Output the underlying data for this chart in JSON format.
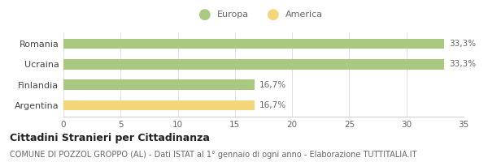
{
  "categories": [
    "Romania",
    "Ucraina",
    "Finlandia",
    "Argentina"
  ],
  "values": [
    33.3,
    33.3,
    16.7,
    16.7
  ],
  "bar_colors": [
    "#a8c97f",
    "#a8c97f",
    "#a8c97f",
    "#f5d57a"
  ],
  "bar_labels": [
    "33,3%",
    "33,3%",
    "16,7%",
    "16,7%"
  ],
  "legend_labels": [
    "Europa",
    "America"
  ],
  "legend_colors": [
    "#a8c97f",
    "#f5d57a"
  ],
  "xlim": [
    0,
    35
  ],
  "xticks": [
    0,
    5,
    10,
    15,
    20,
    25,
    30,
    35
  ],
  "title": "Cittadini Stranieri per Cittadinanza",
  "subtitle": "COMUNE DI POZZOL GROPPO (AL) - Dati ISTAT al 1° gennaio di ogni anno - Elaborazione TUTTITALIA.IT",
  "title_fontsize": 9,
  "subtitle_fontsize": 7,
  "background_color": "#ffffff",
  "bar_height": 0.5
}
